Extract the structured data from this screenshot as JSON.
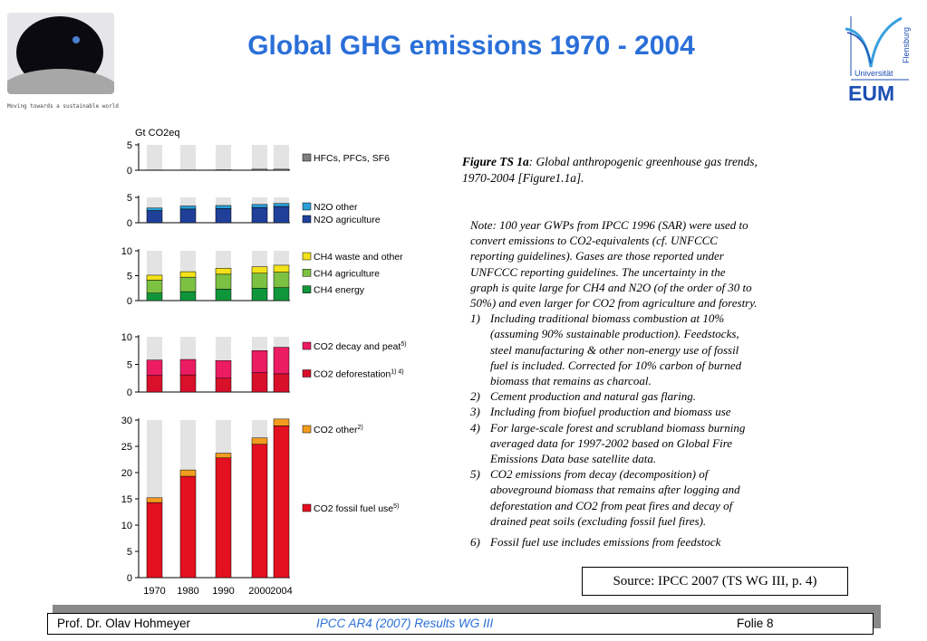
{
  "header": {
    "title": "Global GHG emissions 1970 - 2004",
    "motto": "Moving towards a sustainable world",
    "university_logo_text": "Universität Flensburg",
    "eum_label": "EUM"
  },
  "caption": {
    "figure_label": "Figure TS 1a",
    "text": ": Global anthropogenic greenhouse gas trends, 1970-2004 [Figure1.1a]."
  },
  "note_lines": [
    "Note: 100 year GWPs from IPCC 1996 (SAR) were used to",
    "convert emissions to CO2-equivalents (cf. UNFCCC",
    "reporting guidelines). Gases are those reported under",
    "UNFCCC reporting guidelines. The uncertainty in the",
    "graph is quite large for CH4 and N2O (of the order of 30 to",
    "50%) and even larger for CO2 from agriculture and forestry."
  ],
  "footnotes": [
    {
      "num": "1)",
      "lines": [
        "Including traditional biomass combustion at 10%",
        "(assuming 90% sustainable production). Feedstocks,",
        "steel manufacturing & other non-energy use of fossil",
        "fuel is included. Corrected for 10% carbon of burned",
        "biomass that remains as charcoal."
      ]
    },
    {
      "num": "2)",
      "lines": [
        "Cement production and natural gas flaring."
      ]
    },
    {
      "num": "3)",
      "lines": [
        "Including from biofuel production and biomass use"
      ]
    },
    {
      "num": "4)",
      "lines": [
        "For large-scale forest and scrubland biomass burning",
        "averaged data for 1997-2002 based on Global Fire",
        "Emissions Data base satellite data."
      ]
    },
    {
      "num": "5)",
      "lines": [
        "CO2 emissions from decay (decomposition) of",
        "aboveground biomass that remains after logging and",
        "deforestation and CO2 from peat fires and decay of",
        "drained peat soils (excluding fossil fuel fires)."
      ]
    },
    {
      "num": "6)",
      "lines": [
        "Fossil fuel use includes emissions from feedstock"
      ]
    }
  ],
  "source": "Source: IPCC 2007 (TS WG III, p. 4)",
  "footer": {
    "author": "Prof. Dr. Olav Hohmeyer",
    "center": "IPCC AR4 (2007) Results WG III",
    "slide": "Folie 8"
  },
  "chart_data": {
    "type": "bar",
    "unit_label": "Gt CO2eq",
    "categories": [
      "1970",
      "1980",
      "1990",
      "2000",
      "2004"
    ],
    "panels": [
      {
        "ylim": [
          0,
          5
        ],
        "yticks": [
          0,
          5
        ],
        "series": [
          {
            "name": "HFCs, PFCs, SF6",
            "color": "#7f7f7f",
            "values": [
              0,
              0,
              0.1,
              0.2,
              0.2
            ]
          }
        ]
      },
      {
        "ylim": [
          0,
          5
        ],
        "yticks": [
          0,
          5
        ],
        "series": [
          {
            "name": "N2O agriculture",
            "color": "#1f3f99",
            "values": [
              2.4,
              2.7,
              2.8,
              3.0,
              3.2
            ]
          },
          {
            "name": "N2O other",
            "color": "#2a9fd6",
            "values": [
              0.5,
              0.6,
              0.6,
              0.6,
              0.6
            ]
          }
        ]
      },
      {
        "ylim": [
          0,
          10
        ],
        "yticks": [
          0,
          5,
          10
        ],
        "series": [
          {
            "name": "CH4 energy",
            "color": "#10963a",
            "values": [
              1.5,
              1.8,
              2.3,
              2.5,
              2.6
            ]
          },
          {
            "name": "CH4 agriculture",
            "color": "#7cc142",
            "values": [
              2.6,
              2.9,
              3.0,
              3.0,
              3.1
            ]
          },
          {
            "name": "CH4 waste and other",
            "color": "#f3e21a",
            "values": [
              1.0,
              1.1,
              1.2,
              1.3,
              1.4
            ]
          }
        ]
      },
      {
        "ylim": [
          0,
          10
        ],
        "yticks": [
          0,
          5,
          10
        ],
        "series": [
          {
            "name": "CO2 deforestation",
            "sup": "1) 4)",
            "color": "#d8102a",
            "values": [
              3.0,
              3.1,
              2.5,
              3.5,
              3.3
            ]
          },
          {
            "name": "CO2 decay and peat",
            "sup": "5)",
            "color": "#ec1c63",
            "values": [
              2.8,
              2.8,
              3.2,
              4.0,
              4.8
            ]
          }
        ]
      },
      {
        "ylim": [
          0,
          30
        ],
        "yticks": [
          0,
          5,
          10,
          15,
          20,
          25,
          30
        ],
        "series": [
          {
            "name": "CO2 fossil fuel use",
            "sup": "5)",
            "color": "#e3101f",
            "values": [
              14.3,
              19.3,
              22.8,
              25.4,
              28.9
            ]
          },
          {
            "name": "CO2 other",
            "sup": "2)",
            "color": "#f39c1f",
            "values": [
              0.9,
              1.2,
              0.9,
              1.2,
              1.3
            ]
          }
        ]
      }
    ]
  }
}
